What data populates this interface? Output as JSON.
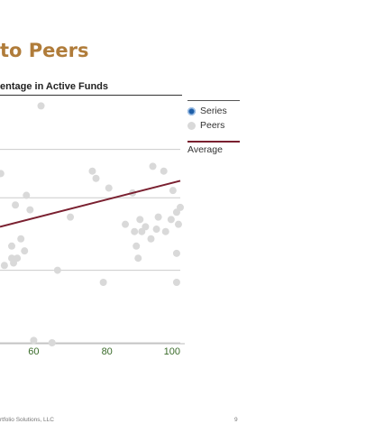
{
  "header": {
    "title": "to Peers",
    "subtitle": "entage in Active Funds"
  },
  "legend": {
    "series_label": "Series",
    "peers_label": "Peers",
    "average_label": "Average"
  },
  "footer": {
    "text": "rtfolio Solutions, LLC",
    "page": "9"
  },
  "colors": {
    "title": "#b07c3a",
    "series": "#1f5fa8",
    "peers": "#d9d9d9",
    "average": "#7a2030",
    "axis_label": "#3a6b2a",
    "grid": "#cccccc"
  },
  "chart_data": {
    "type": "scatter",
    "title": "to Peers",
    "subtitle": "entage in Active Funds",
    "x_ticks": [
      60,
      80,
      100
    ],
    "xlim": [
      50.8,
      100
    ],
    "ylim": [
      0,
      100
    ],
    "y_gridlines": [
      0,
      30,
      60,
      80
    ],
    "grid": true,
    "legend_position": "right",
    "series": [
      {
        "name": "Peers",
        "points": [
          [
            62,
            98
          ],
          [
            51,
            70
          ],
          [
            54,
            40
          ],
          [
            55,
            57
          ],
          [
            58,
            61
          ],
          [
            59,
            55
          ],
          [
            54,
            35
          ],
          [
            54.5,
            33
          ],
          [
            55.5,
            35
          ],
          [
            57.5,
            38
          ],
          [
            56.5,
            43
          ],
          [
            52,
            32
          ],
          [
            66.5,
            30
          ],
          [
            70,
            52
          ],
          [
            76,
            71
          ],
          [
            77,
            68
          ],
          [
            80.5,
            64
          ],
          [
            79,
            25
          ],
          [
            87,
            62
          ],
          [
            92.5,
            73
          ],
          [
            95.5,
            71
          ],
          [
            98,
            63
          ],
          [
            85,
            49
          ],
          [
            87.5,
            46
          ],
          [
            89,
            51
          ],
          [
            89.5,
            46
          ],
          [
            88,
            40
          ],
          [
            88.5,
            35
          ],
          [
            90.5,
            48
          ],
          [
            92,
            43
          ],
          [
            93.5,
            47
          ],
          [
            94,
            52
          ],
          [
            96,
            46
          ],
          [
            97.5,
            51
          ],
          [
            99,
            54
          ],
          [
            99.5,
            49
          ],
          [
            100,
            56
          ],
          [
            99,
            37
          ],
          [
            99,
            25
          ],
          [
            65,
            0
          ],
          [
            60,
            1
          ]
        ]
      }
    ],
    "average_line": {
      "start": [
        50.8,
        48
      ],
      "end": [
        100,
        67
      ]
    }
  }
}
